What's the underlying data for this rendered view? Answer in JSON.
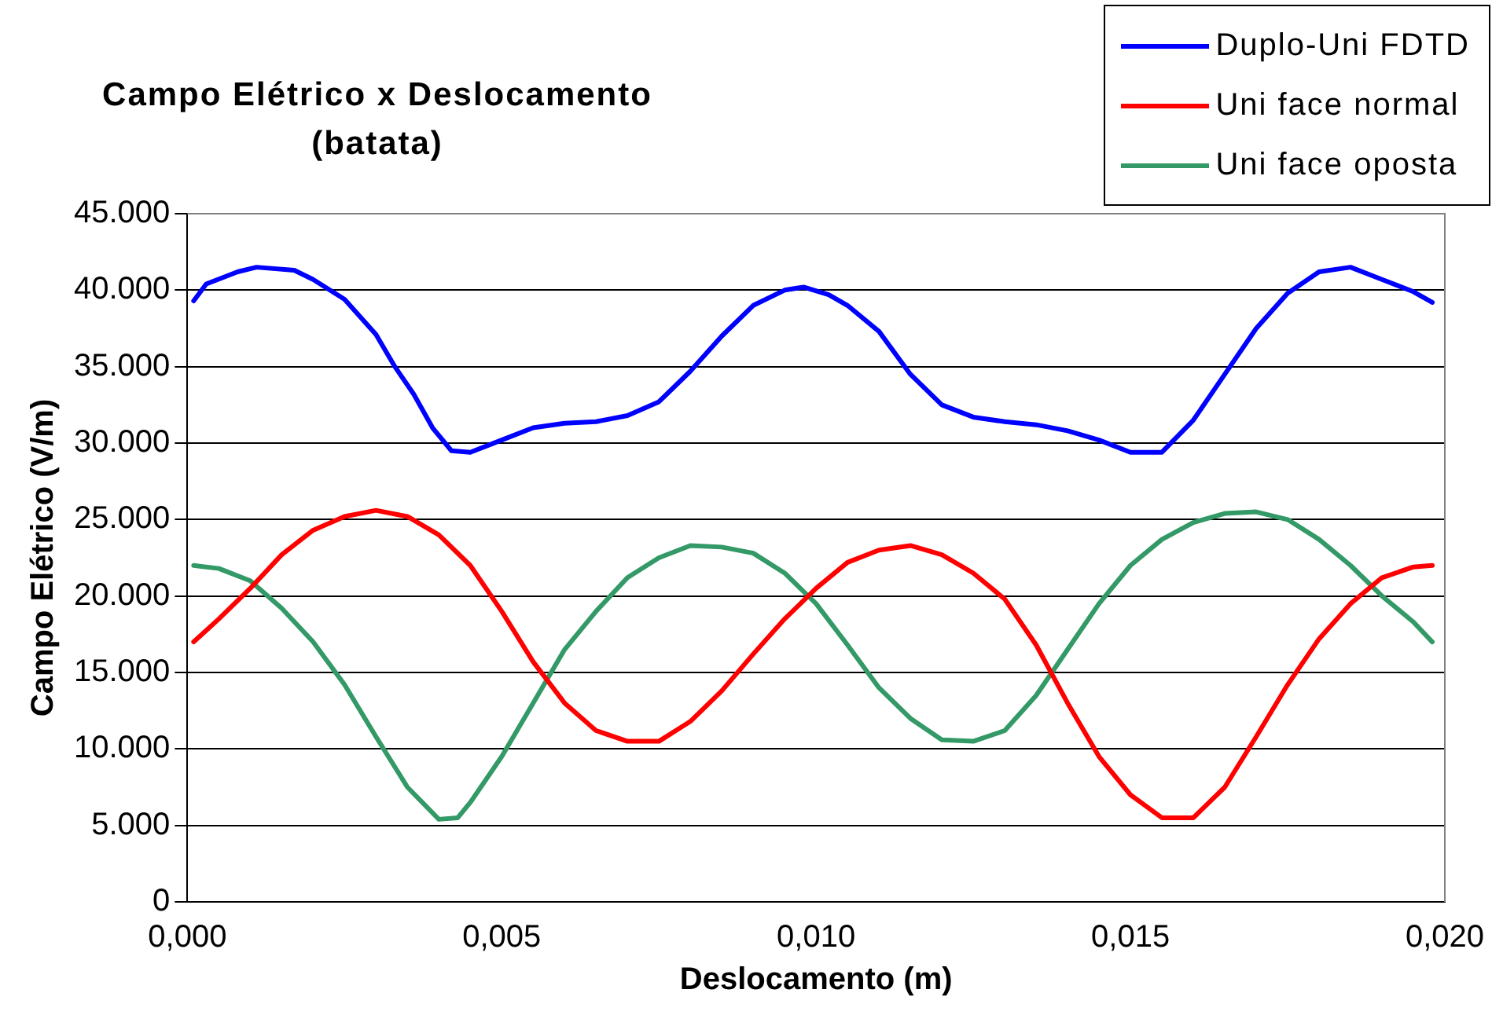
{
  "chart_data": {
    "type": "line",
    "title": "Campo Elétrico x Deslocamento (batata)",
    "xlabel": "Deslocamento (m)",
    "ylabel": "Campo Elétrico (V/m)",
    "xlim": [
      0,
      0.02
    ],
    "xticks": [
      {
        "value": 0,
        "label": "0,000"
      },
      {
        "value": 0.005,
        "label": "0,005"
      },
      {
        "value": 0.01,
        "label": "0,010"
      },
      {
        "value": 0.015,
        "label": "0,015"
      },
      {
        "value": 0.02,
        "label": "0,020"
      }
    ],
    "ylim": [
      0,
      45000
    ],
    "yticks": [
      {
        "value": 0,
        "label": "0"
      },
      {
        "value": 5000,
        "label": "5.000"
      },
      {
        "value": 10000,
        "label": "10.000"
      },
      {
        "value": 15000,
        "label": "15.000"
      },
      {
        "value": 20000,
        "label": "20.000"
      },
      {
        "value": 25000,
        "label": "25.000"
      },
      {
        "value": 30000,
        "label": "30.000"
      },
      {
        "value": 35000,
        "label": "35.000"
      },
      {
        "value": 40000,
        "label": "40.000"
      },
      {
        "value": 45000,
        "label": "45.000"
      }
    ],
    "grid": "y",
    "legend": "top right",
    "marker": "none",
    "line_style": "solid",
    "series": [
      {
        "name": "Duplo-Uni FDTD",
        "color": "#0000ff",
        "x": [
          0.0001,
          0.0003,
          0.0008,
          0.0011,
          0.0017,
          0.002,
          0.0025,
          0.003,
          0.0033,
          0.0036,
          0.0039,
          0.0042,
          0.0045,
          0.005,
          0.0055,
          0.006,
          0.0065,
          0.007,
          0.0075,
          0.008,
          0.0085,
          0.009,
          0.0095,
          0.0098,
          0.0102,
          0.0105,
          0.011,
          0.0115,
          0.012,
          0.0125,
          0.013,
          0.0135,
          0.014,
          0.0145,
          0.015,
          0.0155,
          0.016,
          0.0165,
          0.017,
          0.0175,
          0.018,
          0.0185,
          0.019,
          0.0195,
          0.0198
        ],
        "values": [
          39300,
          40400,
          41200,
          41500,
          41300,
          40700,
          39400,
          37100,
          35000,
          33200,
          31000,
          29500,
          29400,
          30200,
          31000,
          31300,
          31400,
          31800,
          32700,
          34700,
          37000,
          39000,
          40000,
          40200,
          39700,
          39000,
          37300,
          34500,
          32500,
          31700,
          31400,
          31200,
          30800,
          30200,
          29400,
          29400,
          31500,
          34500,
          37500,
          39800,
          41200,
          41500,
          40700,
          39900,
          39200
        ]
      },
      {
        "name": "Uni face normal",
        "color": "#ff0000",
        "x": [
          0.0001,
          0.0005,
          0.001,
          0.0015,
          0.002,
          0.0025,
          0.003,
          0.0035,
          0.004,
          0.0045,
          0.005,
          0.0055,
          0.006,
          0.0065,
          0.007,
          0.0075,
          0.008,
          0.0085,
          0.009,
          0.0095,
          0.01,
          0.0105,
          0.011,
          0.0115,
          0.012,
          0.0125,
          0.013,
          0.0135,
          0.014,
          0.0145,
          0.015,
          0.0155,
          0.016,
          0.0165,
          0.017,
          0.0175,
          0.018,
          0.0185,
          0.019,
          0.0195,
          0.0198
        ],
        "values": [
          17000,
          18500,
          20500,
          22700,
          24300,
          25200,
          25600,
          25200,
          24000,
          22000,
          19000,
          15700,
          13000,
          11200,
          10500,
          10500,
          11800,
          13800,
          16200,
          18500,
          20500,
          22200,
          23000,
          23300,
          22700,
          21500,
          19800,
          16800,
          13000,
          9500,
          7000,
          5500,
          5500,
          7500,
          10800,
          14200,
          17200,
          19500,
          21200,
          21900,
          22000
        ]
      },
      {
        "name": "Uni face oposta",
        "color": "#339966",
        "x": [
          0.0001,
          0.0005,
          0.001,
          0.0015,
          0.002,
          0.0025,
          0.003,
          0.0035,
          0.004,
          0.0043,
          0.0045,
          0.005,
          0.0055,
          0.006,
          0.0065,
          0.007,
          0.0075,
          0.008,
          0.0085,
          0.009,
          0.0095,
          0.01,
          0.0105,
          0.011,
          0.0115,
          0.012,
          0.0125,
          0.013,
          0.0135,
          0.014,
          0.0145,
          0.015,
          0.0155,
          0.016,
          0.0165,
          0.017,
          0.0175,
          0.018,
          0.0185,
          0.019,
          0.0195,
          0.0198
        ],
        "values": [
          22000,
          21800,
          21000,
          19200,
          17000,
          14200,
          10800,
          7500,
          5400,
          5500,
          6500,
          9500,
          13000,
          16500,
          19000,
          21200,
          22500,
          23300,
          23200,
          22800,
          21500,
          19500,
          16800,
          14000,
          12000,
          10600,
          10500,
          11200,
          13500,
          16500,
          19500,
          22000,
          23700,
          24800,
          25400,
          25500,
          25000,
          23700,
          22000,
          20000,
          18300,
          17000
        ]
      }
    ]
  }
}
